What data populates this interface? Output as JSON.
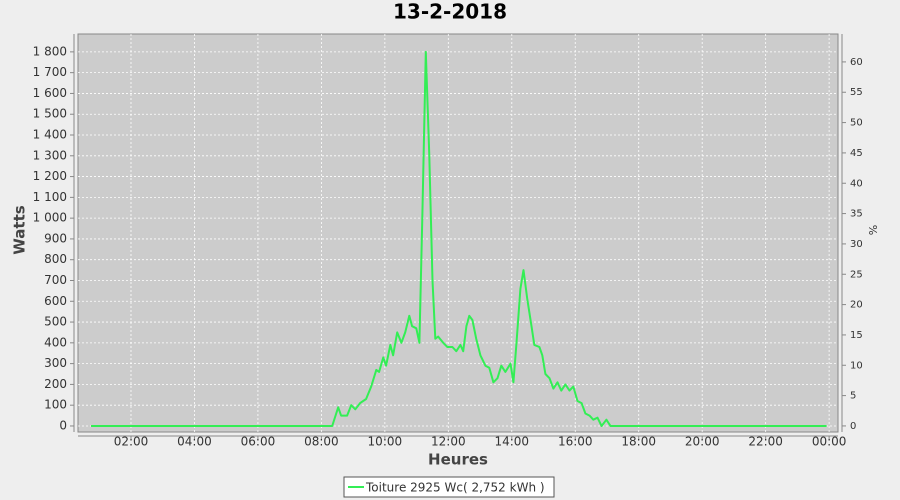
{
  "chart_data": {
    "type": "line",
    "title": "13-2-2018",
    "x_label": "Heures",
    "y_label": "Watts",
    "y2_label": "%",
    "x": [
      0.74,
      8.34,
      8.53,
      8.62,
      8.81,
      8.94,
      9.07,
      9.22,
      9.41,
      9.57,
      9.73,
      9.82,
      9.95,
      10.04,
      10.17,
      10.26,
      10.39,
      10.52,
      10.64,
      10.77,
      10.86,
      10.99,
      11.09,
      11.18,
      11.29,
      11.4,
      11.5,
      11.59,
      11.68,
      11.84,
      11.97,
      12.13,
      12.25,
      12.38,
      12.47,
      12.57,
      12.66,
      12.76,
      12.88,
      13.01,
      13.17,
      13.29,
      13.42,
      13.55,
      13.67,
      13.8,
      13.96,
      14.05,
      14.15,
      14.27,
      14.37,
      14.49,
      14.62,
      14.71,
      14.87,
      14.96,
      15.06,
      15.19,
      15.31,
      15.44,
      15.56,
      15.69,
      15.82,
      15.94,
      16.07,
      16.2,
      16.32,
      16.45,
      16.57,
      16.7,
      16.83,
      16.98,
      17.11,
      23.92
    ],
    "series": [
      {
        "name": "Toiture 2925 Wc( 2,752 kWh )",
        "color": "#33ee55",
        "values": [
          0,
          0,
          90,
          50,
          50,
          100,
          80,
          110,
          130,
          190,
          270,
          260,
          330,
          290,
          390,
          340,
          450,
          400,
          450,
          530,
          480,
          470,
          400,
          1000,
          1800,
          1300,
          700,
          420,
          430,
          400,
          380,
          380,
          360,
          390,
          360,
          480,
          530,
          510,
          420,
          340,
          290,
          280,
          210,
          230,
          290,
          260,
          300,
          210,
          400,
          660,
          750,
          610,
          480,
          390,
          380,
          340,
          250,
          230,
          180,
          210,
          170,
          200,
          170,
          190,
          120,
          110,
          60,
          50,
          30,
          40,
          0,
          30,
          0,
          0
        ]
      }
    ],
    "xlim": [
      0.33,
      24.28
    ],
    "xticks": [
      {
        "value": 2,
        "label": "02:00"
      },
      {
        "value": 4,
        "label": "04:00"
      },
      {
        "value": 6,
        "label": "06:00"
      },
      {
        "value": 8,
        "label": "08:00"
      },
      {
        "value": 10,
        "label": "10:00"
      },
      {
        "value": 12,
        "label": "12:00"
      },
      {
        "value": 14,
        "label": "14:00"
      },
      {
        "value": 16,
        "label": "16:00"
      },
      {
        "value": 18,
        "label": "18:00"
      },
      {
        "value": 20,
        "label": "20:00"
      },
      {
        "value": 22,
        "label": "22:00"
      },
      {
        "value": 24,
        "label": "00:00"
      }
    ],
    "ylim": [
      -29,
      1886
    ],
    "yticks": [
      0,
      100,
      200,
      300,
      400,
      500,
      600,
      700,
      800,
      900,
      {
        "value": 1000,
        "label": "1 000"
      },
      {
        "value": 1100,
        "label": "1 100"
      },
      {
        "value": 1200,
        "label": "1 200"
      },
      {
        "value": 1300,
        "label": "1 300"
      },
      {
        "value": 1400,
        "label": "1 400"
      },
      {
        "value": 1500,
        "label": "1 500"
      },
      {
        "value": 1600,
        "label": "1 600"
      },
      {
        "value": 1700,
        "label": "1 700"
      },
      {
        "value": 1800,
        "label": "1 800"
      }
    ],
    "y2lim": [
      -1,
      64.6
    ],
    "y2ticks": [
      0,
      5,
      10,
      15,
      20,
      25,
      30,
      35,
      40,
      45,
      50,
      55,
      60
    ],
    "grid": true
  }
}
